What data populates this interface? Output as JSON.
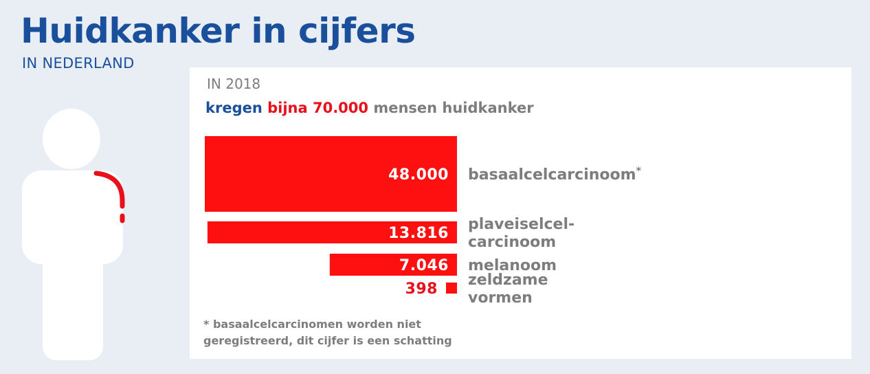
{
  "header": {
    "title": "Huidkanker in cijfers",
    "subtitle": "IN NEDERLAND"
  },
  "panel": {
    "year_label": "IN 2018",
    "headline_part1": "kregen",
    "headline_part2": "bijna 70.000",
    "headline_part3": "mensen huidkanker",
    "footnote_line1": "* basaalcelcarcinomen worden niet",
    "footnote_line2": "geregistreerd, dit cijfer is een schatting"
  },
  "colors": {
    "brand_blue": "#1a4f9c",
    "bar_red": "#ff1010",
    "label_grey": "#7d7d7d",
    "background": "#e9edf4"
  },
  "icons": {
    "figure": "person-silhouette-icon"
  },
  "chart_data": {
    "type": "bar",
    "orientation": "horizontal",
    "categories": [
      "basaalcelcarcinoom*",
      "plaveiselcel-carcinoom",
      "melanoom",
      "zeldzame vormen"
    ],
    "category_lines": [
      [
        "basaalcelcarcinoom*"
      ],
      [
        "plaveiselcel-",
        "carcinoom"
      ],
      [
        "melanoom"
      ],
      [
        "zeldzame",
        "vormen"
      ]
    ],
    "values": [
      48000,
      13816,
      7046,
      398
    ],
    "value_labels": [
      "48.000",
      "13.816",
      "7.046",
      "398"
    ],
    "bar_area_scaled": true
  }
}
